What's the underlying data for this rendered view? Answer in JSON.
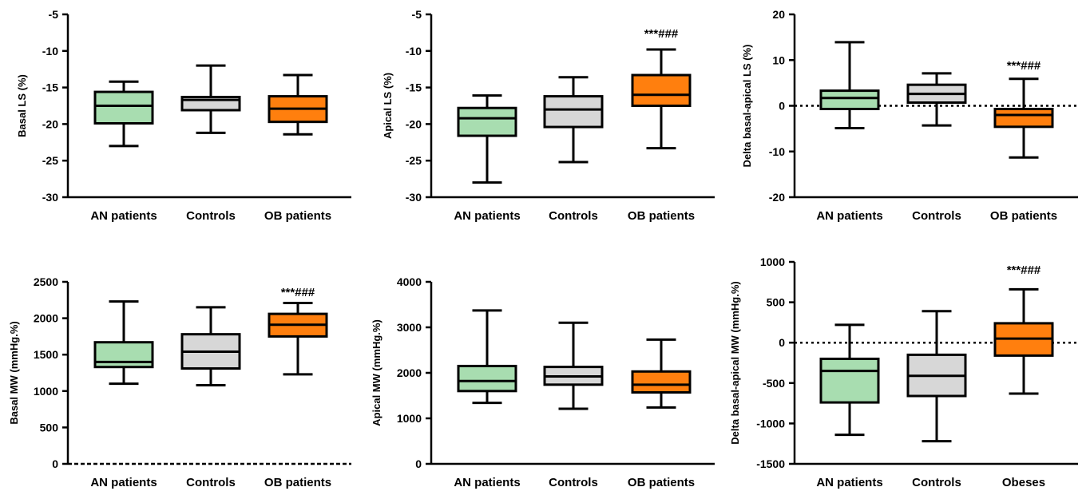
{
  "colors": {
    "an": "#a8ddb0",
    "controls": "#d7d7d7",
    "ob": "#ff7f0e",
    "stroke": "#000000"
  },
  "chart_data": [
    {
      "type": "box",
      "ylabel": "Basal LS (%)",
      "ylim": [
        -30,
        -5
      ],
      "yticks": [
        -5,
        -10,
        -15,
        -20,
        -25,
        -30
      ],
      "categories": [
        "AN patients",
        "Controls",
        "OB patients"
      ],
      "boxes": [
        {
          "whisker_low": -23.0,
          "q1": -19.9,
          "median": -17.5,
          "q3": -15.6,
          "whisker_high": -14.2
        },
        {
          "whisker_low": -21.2,
          "q1": -18.1,
          "median": -16.7,
          "q3": -16.3,
          "whisker_high": -12.0
        },
        {
          "whisker_low": -21.4,
          "q1": -19.7,
          "median": -17.9,
          "q3": -16.2,
          "whisker_high": -13.3
        }
      ],
      "zero_line": false,
      "annotation": null
    },
    {
      "type": "box",
      "ylabel": "Apical LS (%)",
      "ylim": [
        -30,
        -5
      ],
      "yticks": [
        -5,
        -10,
        -15,
        -20,
        -25,
        -30
      ],
      "categories": [
        "AN patients",
        "Controls",
        "OB patients"
      ],
      "boxes": [
        {
          "whisker_low": -28.0,
          "q1": -21.6,
          "median": -19.2,
          "q3": -17.8,
          "whisker_high": -16.1
        },
        {
          "whisker_low": -25.2,
          "q1": -20.4,
          "median": -18.0,
          "q3": -16.2,
          "whisker_high": -13.6
        },
        {
          "whisker_low": -23.3,
          "q1": -17.5,
          "median": -16.0,
          "q3": -13.3,
          "whisker_high": -9.8
        }
      ],
      "zero_line": false,
      "annotation": {
        "text": "***###",
        "category_index": 2,
        "y": -7.5
      }
    },
    {
      "type": "box",
      "ylabel": "Delta basal-apical LS (%)",
      "ylim": [
        -20,
        20
      ],
      "yticks": [
        20,
        10,
        0,
        -10,
        -20
      ],
      "categories": [
        "AN patients",
        "Controls",
        "OB patients"
      ],
      "boxes": [
        {
          "whisker_low": -4.9,
          "q1": -0.7,
          "median": 1.7,
          "q3": 3.3,
          "whisker_high": 13.9
        },
        {
          "whisker_low": -4.3,
          "q1": 0.7,
          "median": 2.6,
          "q3": 4.6,
          "whisker_high": 7.1
        },
        {
          "whisker_low": -11.3,
          "q1": -4.6,
          "median": -2.0,
          "q3": -0.7,
          "whisker_high": 5.9
        }
      ],
      "zero_line": true,
      "annotation": {
        "text": "***###",
        "category_index": 2,
        "y": 9.0
      }
    },
    {
      "type": "box",
      "ylabel": "Basal MW (mmHg.%)",
      "ylim": [
        0,
        2500
      ],
      "yticks": [
        2500,
        2000,
        1500,
        1000,
        500,
        0
      ],
      "categories": [
        "AN patients",
        "Controls",
        "OB patients"
      ],
      "boxes": [
        {
          "whisker_low": 1100,
          "q1": 1330,
          "median": 1400,
          "q3": 1670,
          "whisker_high": 2230
        },
        {
          "whisker_low": 1080,
          "q1": 1310,
          "median": 1540,
          "q3": 1780,
          "whisker_high": 2150
        },
        {
          "whisker_low": 1230,
          "q1": 1750,
          "median": 1910,
          "q3": 2060,
          "whisker_high": 2210
        }
      ],
      "zero_line": true,
      "annotation": {
        "text": "***###",
        "category_index": 2,
        "y": 2370
      }
    },
    {
      "type": "box",
      "ylabel": "Apical MW (mmHg.%)",
      "ylim": [
        0,
        4000
      ],
      "yticks": [
        4000,
        3000,
        2000,
        1000,
        0
      ],
      "categories": [
        "AN patients",
        "Controls",
        "OB patients"
      ],
      "boxes": [
        {
          "whisker_low": 1340,
          "q1": 1600,
          "median": 1820,
          "q3": 2150,
          "whisker_high": 3370
        },
        {
          "whisker_low": 1210,
          "q1": 1740,
          "median": 1920,
          "q3": 2130,
          "whisker_high": 3100
        },
        {
          "whisker_low": 1240,
          "q1": 1570,
          "median": 1740,
          "q3": 2030,
          "whisker_high": 2730
        }
      ],
      "zero_line": false,
      "annotation": null
    },
    {
      "type": "box",
      "ylabel": "Delta basal-apical MW (mmHg.%)",
      "ylim": [
        -1500,
        1000
      ],
      "yticks": [
        1000,
        500,
        0,
        -500,
        -1000,
        -1500
      ],
      "categories": [
        "AN patients",
        "Controls",
        "Obeses"
      ],
      "boxes": [
        {
          "whisker_low": -1140,
          "q1": -740,
          "median": -350,
          "q3": -200,
          "whisker_high": 220
        },
        {
          "whisker_low": -1220,
          "q1": -660,
          "median": -410,
          "q3": -150,
          "whisker_high": 390
        },
        {
          "whisker_low": -630,
          "q1": -160,
          "median": 50,
          "q3": 240,
          "whisker_high": 660
        }
      ],
      "zero_line": true,
      "annotation": {
        "text": "***###",
        "category_index": 2,
        "y": 910
      }
    }
  ]
}
